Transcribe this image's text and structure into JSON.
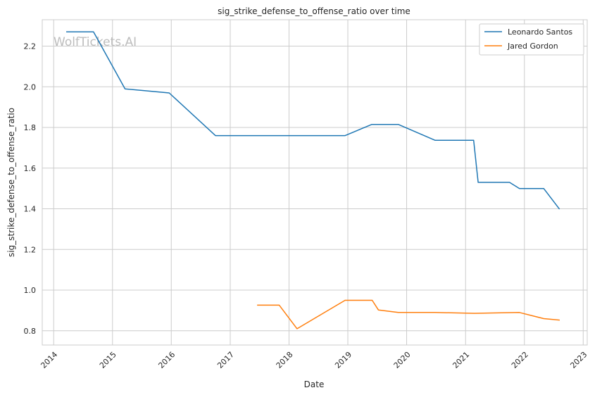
{
  "chart_data": {
    "type": "line",
    "title": "sig_strike_defense_to_offense_ratio over time",
    "xlabel": "Date",
    "ylabel": "sig_strike_defense_to_offense_ratio",
    "watermark": "WolfTickets.AI",
    "xlim": [
      "2013-10-22",
      "2023-01-26"
    ],
    "ylim": [
      0.73,
      2.33
    ],
    "x_ticks": [
      "2014",
      "2015",
      "2016",
      "2017",
      "2018",
      "2019",
      "2020",
      "2021",
      "2022",
      "2023"
    ],
    "y_ticks": [
      "0.8",
      "1.0",
      "1.2",
      "1.4",
      "1.6",
      "1.8",
      "2.0",
      "2.2"
    ],
    "grid": true,
    "legend_position": "top-right",
    "series": [
      {
        "name": "Leonardo Santos",
        "color": "#1f77b4",
        "points": [
          [
            "2014-03-23",
            2.27
          ],
          [
            "2014-09-05",
            2.27
          ],
          [
            "2015-03-20",
            1.99
          ],
          [
            "2015-12-19",
            1.97
          ],
          [
            "2016-10-01",
            1.76
          ],
          [
            "2018-12-15",
            1.76
          ],
          [
            "2019-05-30",
            1.815
          ],
          [
            "2019-11-10",
            1.815
          ],
          [
            "2020-06-25",
            1.737
          ],
          [
            "2021-02-20",
            1.737
          ],
          [
            "2021-03-20",
            1.53
          ],
          [
            "2021-10-01",
            1.53
          ],
          [
            "2021-12-01",
            1.5
          ],
          [
            "2022-05-01",
            1.5
          ],
          [
            "2022-08-05",
            1.4
          ]
        ]
      },
      {
        "name": "Jared Gordon",
        "color": "#ff7f0e",
        "points": [
          [
            "2017-06-20",
            0.926
          ],
          [
            "2017-11-01",
            0.926
          ],
          [
            "2018-02-20",
            0.81
          ],
          [
            "2018-12-15",
            0.95
          ],
          [
            "2019-06-01",
            0.95
          ],
          [
            "2019-07-10",
            0.902
          ],
          [
            "2019-11-10",
            0.89
          ],
          [
            "2020-06-25",
            0.89
          ],
          [
            "2021-02-25",
            0.886
          ],
          [
            "2021-12-01",
            0.89
          ],
          [
            "2022-05-01",
            0.86
          ],
          [
            "2022-08-05",
            0.853
          ]
        ]
      }
    ]
  }
}
